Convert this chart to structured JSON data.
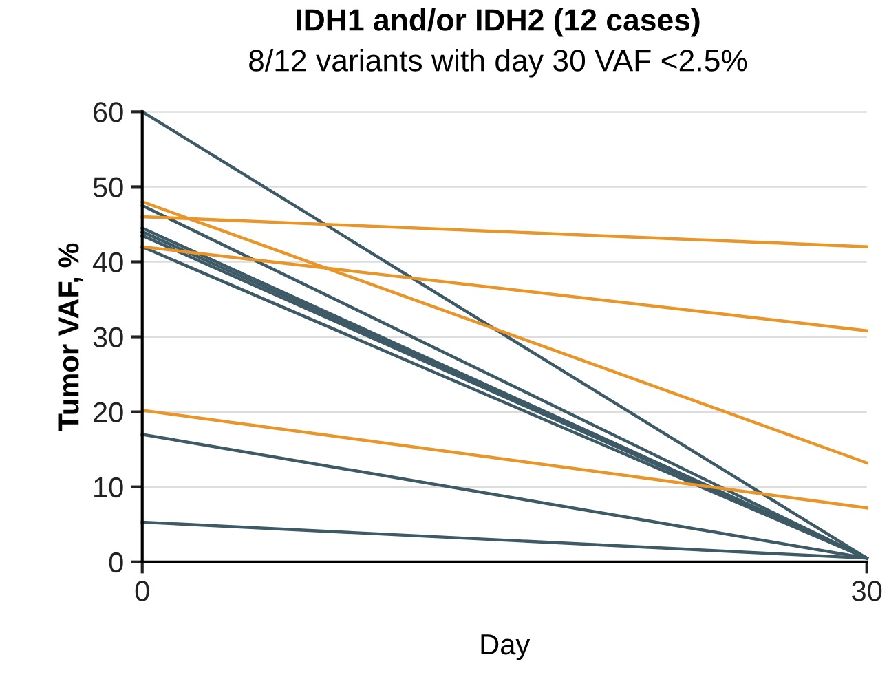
{
  "chart_data": {
    "type": "line",
    "title": "IDH1 and/or IDH2 (12 cases)",
    "subtitle": "8/12 variants with day 30 VAF <2.5%",
    "xlabel": "Day",
    "ylabel": "Tumor VAF, %",
    "x": [
      0,
      30
    ],
    "series": [
      {
        "color": "#3d5a66",
        "values": [
          60,
          0.5
        ]
      },
      {
        "color": "#3d5a66",
        "values": [
          47.5,
          0.5
        ]
      },
      {
        "color": "#3d5a66",
        "values": [
          44.5,
          0.5
        ]
      },
      {
        "color": "#3d5a66",
        "values": [
          44,
          0.5
        ]
      },
      {
        "color": "#3d5a66",
        "values": [
          43.5,
          0.5
        ]
      },
      {
        "color": "#3d5a66",
        "values": [
          42,
          0.5
        ]
      },
      {
        "color": "#3d5a66",
        "values": [
          17,
          0.5
        ]
      },
      {
        "color": "#3d5a66",
        "values": [
          5.3,
          0.5
        ]
      },
      {
        "color": "#e8952a",
        "values": [
          48,
          13.2
        ]
      },
      {
        "color": "#e8952a",
        "values": [
          46,
          42
        ]
      },
      {
        "color": "#e8952a",
        "values": [
          42,
          30.8
        ]
      },
      {
        "color": "#e8952a",
        "values": [
          20.2,
          7.2
        ]
      }
    ],
    "xlim": [
      0,
      30
    ],
    "xticks": [
      0,
      30
    ],
    "ylim": [
      0,
      60
    ],
    "yticks": [
      0,
      10,
      20,
      30,
      40,
      50,
      60
    ],
    "grid": "y",
    "legend": false,
    "marker": "none",
    "line_style": "solid"
  }
}
